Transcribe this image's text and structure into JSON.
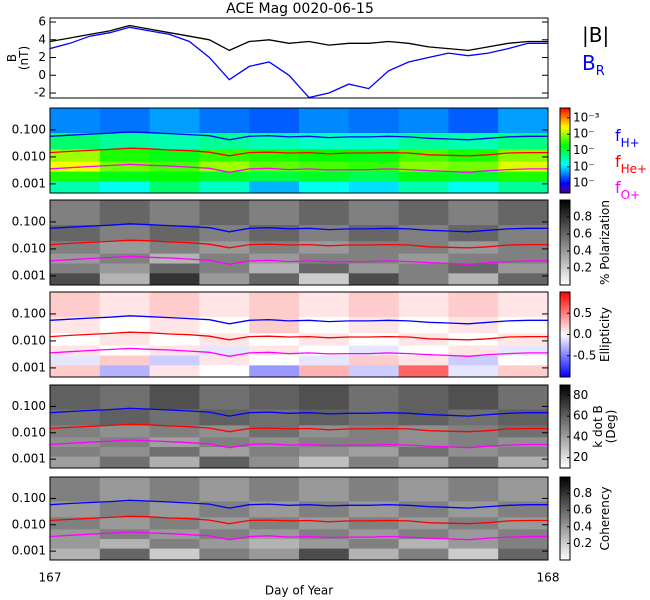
{
  "chart_data": [
    {
      "type": "line",
      "title": "ACE Mag 0020-06-15",
      "xlim": [
        167,
        168
      ],
      "ylim": [
        -2.56,
        6.45
      ],
      "yticks": [
        -2,
        0,
        2,
        4,
        6
      ],
      "ylabel_lines": [
        "B",
        "(nT)"
      ],
      "x": [
        167.0,
        167.04,
        167.08,
        167.12,
        167.16,
        167.2,
        167.24,
        167.28,
        167.32,
        167.36,
        167.4,
        167.44,
        167.48,
        167.52,
        167.56,
        167.6,
        167.64,
        167.68,
        167.72,
        167.76,
        167.8,
        167.84,
        167.88,
        167.92,
        167.96,
        168.0
      ],
      "series": [
        {
          "name": "|B|",
          "color": "#000000",
          "values": [
            3.8,
            4.2,
            4.6,
            5.0,
            5.6,
            5.2,
            4.8,
            4.4,
            4.0,
            2.8,
            3.8,
            4.0,
            3.6,
            3.8,
            3.4,
            3.6,
            3.6,
            3.8,
            3.6,
            3.2,
            3.0,
            2.8,
            3.2,
            3.6,
            3.8,
            3.8
          ]
        },
        {
          "name": "B",
          "subscript": "R",
          "color": "#0000ff",
          "values": [
            3.0,
            3.6,
            4.4,
            4.8,
            5.4,
            5.0,
            4.6,
            3.8,
            2.0,
            -0.5,
            1.0,
            1.5,
            0.0,
            -2.5,
            -2.0,
            -1.0,
            -1.5,
            0.5,
            1.5,
            2.0,
            2.5,
            2.2,
            2.5,
            3.0,
            3.6,
            3.6
          ]
        }
      ]
    },
    {
      "type": "heatmap",
      "xlim": [
        167,
        168
      ],
      "ylim": [
        0.00046,
        0.65
      ],
      "log_y": true,
      "yticks": [
        0.001,
        {
          "value": 0.01,
          "label": "0.010"
        },
        {
          "value": 0.1,
          "label": "0.100"
        }
      ],
      "colormap": "rainbow",
      "zlim": [
        -7.6,
        -2.4
      ],
      "zticks": [
        {
          "value": -3,
          "label": "10⁻³"
        },
        {
          "value": -4,
          "label": "10⁻"
        },
        {
          "value": -5,
          "label": "10⁻"
        },
        {
          "value": -6,
          "label": "10⁻"
        },
        {
          "value": -7,
          "label": "10⁻"
        }
      ],
      "time_bins": [
        167.0,
        167.1,
        167.2,
        167.3,
        167.4,
        167.5,
        167.6,
        167.7,
        167.8,
        167.9,
        168.0
      ],
      "freq_bins": [
        0.00046,
        0.0013,
        0.003,
        0.007,
        0.02,
        0.08,
        0.65
      ],
      "z": [
        [
          -5.5,
          -5.8,
          -5.2,
          -5.6,
          -6.2,
          -5.8,
          -6.0,
          -5.5,
          -5.8,
          -5.4
        ],
        [
          -4.6,
          -4.8,
          -4.7,
          -4.9,
          -5.0,
          -4.9,
          -5.1,
          -4.8,
          -4.9,
          -4.6
        ],
        [
          -3.6,
          -4.2,
          -4.4,
          -4.0,
          -4.3,
          -4.4,
          -4.5,
          -4.1,
          -4.2,
          -3.7
        ],
        [
          -4.0,
          -4.6,
          -4.8,
          -4.5,
          -4.6,
          -4.7,
          -4.8,
          -4.4,
          -4.6,
          -4.1
        ],
        [
          -5.2,
          -5.4,
          -5.5,
          -5.4,
          -5.5,
          -5.6,
          -5.6,
          -5.4,
          -5.5,
          -5.3
        ],
        [
          -6.4,
          -6.5,
          -6.3,
          -6.5,
          -6.6,
          -6.4,
          -6.5,
          -6.4,
          -6.6,
          -6.3
        ]
      ],
      "series": [
        {
          "name": "f",
          "subscript": "H+",
          "color": "#0000ff",
          "values": [
            0.058,
            0.064,
            0.07,
            0.076,
            0.085,
            0.079,
            0.073,
            0.067,
            0.061,
            0.043,
            0.058,
            0.061,
            0.055,
            0.058,
            0.052,
            0.055,
            0.055,
            0.058,
            0.055,
            0.049,
            0.046,
            0.043,
            0.049,
            0.055,
            0.058,
            0.058
          ]
        },
        {
          "name": "f",
          "subscript": "He+",
          "color": "#ff0000",
          "values": [
            0.0145,
            0.016,
            0.0175,
            0.019,
            0.021,
            0.02,
            0.018,
            0.017,
            0.015,
            0.011,
            0.0145,
            0.015,
            0.014,
            0.0145,
            0.013,
            0.014,
            0.014,
            0.0145,
            0.014,
            0.012,
            0.0115,
            0.011,
            0.012,
            0.014,
            0.0145,
            0.0145
          ]
        },
        {
          "name": "f",
          "subscript": "O+",
          "color": "#ff00ff",
          "values": [
            0.0036,
            0.004,
            0.0044,
            0.0048,
            0.0053,
            0.0049,
            0.0046,
            0.0042,
            0.0038,
            0.0027,
            0.0036,
            0.0038,
            0.0034,
            0.0036,
            0.0033,
            0.0034,
            0.0034,
            0.0036,
            0.0034,
            0.0031,
            0.0029,
            0.0027,
            0.0031,
            0.0034,
            0.0036,
            0.0036
          ]
        }
      ]
    },
    {
      "type": "heatmap",
      "xlim": [
        167,
        168
      ],
      "ylim": [
        0.00046,
        0.65
      ],
      "log_y": true,
      "yticks": [
        0.001,
        {
          "value": 0.01,
          "label": "0.010"
        },
        {
          "value": 0.1,
          "label": "0.100"
        }
      ],
      "colormap": "gray",
      "zlim": [
        0,
        1
      ],
      "zticks": [
        0.2,
        0.4,
        0.6,
        0.8
      ],
      "zlabel_lines": [
        "% Polarization"
      ],
      "time_bins": [
        167.0,
        167.1,
        167.2,
        167.3,
        167.4,
        167.5,
        167.6,
        167.7,
        167.8,
        167.9,
        168.0
      ],
      "freq_bins": [
        0.00046,
        0.0013,
        0.003,
        0.007,
        0.02,
        0.08,
        0.65
      ],
      "z": [
        [
          0.7,
          0.3,
          0.8,
          0.4,
          0.6,
          0.2,
          0.7,
          0.5,
          0.3,
          0.6
        ],
        [
          0.5,
          0.4,
          0.6,
          0.5,
          0.3,
          0.6,
          0.4,
          0.5,
          0.6,
          0.4
        ],
        [
          0.4,
          0.5,
          0.3,
          0.5,
          0.4,
          0.5,
          0.5,
          0.4,
          0.5,
          0.5
        ],
        [
          0.5,
          0.4,
          0.5,
          0.4,
          0.5,
          0.4,
          0.5,
          0.5,
          0.4,
          0.5
        ],
        [
          0.6,
          0.5,
          0.6,
          0.5,
          0.6,
          0.5,
          0.6,
          0.5,
          0.6,
          0.5
        ],
        [
          0.5,
          0.6,
          0.5,
          0.6,
          0.5,
          0.6,
          0.5,
          0.6,
          0.5,
          0.6
        ]
      ]
    },
    {
      "type": "heatmap",
      "xlim": [
        167,
        168
      ],
      "ylim": [
        0.00046,
        0.65
      ],
      "log_y": true,
      "yticks": [
        0.001,
        {
          "value": 0.01,
          "label": "0.010"
        },
        {
          "value": 0.1,
          "label": "0.100"
        }
      ],
      "colormap": "bluered",
      "zlim": [
        -1,
        1
      ],
      "zticks": [
        0.5,
        {
          "value": 0,
          "label": "0.0"
        },
        -0.5
      ],
      "zlabel_lines": [
        "Ellipticity"
      ],
      "time_bins": [
        167.0,
        167.1,
        167.2,
        167.3,
        167.4,
        167.5,
        167.6,
        167.7,
        167.8,
        167.9,
        168.0
      ],
      "freq_bins": [
        0.00046,
        0.0013,
        0.003,
        0.007,
        0.02,
        0.08,
        0.65
      ],
      "z": [
        [
          0.2,
          -0.3,
          0.1,
          0.0,
          -0.4,
          0.3,
          -0.2,
          0.6,
          -0.1,
          0.2
        ],
        [
          -0.1,
          0.2,
          -0.2,
          0.1,
          0.0,
          -0.1,
          0.2,
          0.1,
          -0.2,
          0.0
        ],
        [
          0.1,
          0.0,
          0.1,
          -0.1,
          0.1,
          0.0,
          -0.1,
          0.0,
          0.1,
          -0.1
        ],
        [
          0.0,
          0.1,
          0.0,
          0.1,
          0.0,
          0.1,
          0.0,
          0.1,
          0.0,
          0.1
        ],
        [
          0.1,
          0.0,
          0.1,
          0.0,
          0.2,
          0.0,
          0.1,
          0.0,
          0.1,
          0.0
        ],
        [
          0.2,
          0.1,
          0.2,
          0.1,
          0.2,
          0.1,
          0.2,
          0.1,
          0.2,
          0.1
        ]
      ]
    },
    {
      "type": "heatmap",
      "xlim": [
        167,
        168
      ],
      "ylim": [
        0.00046,
        0.65
      ],
      "log_y": true,
      "yticks": [
        0.001,
        {
          "value": 0.01,
          "label": "0.010"
        },
        {
          "value": 0.1,
          "label": "0.100"
        }
      ],
      "colormap": "gray",
      "zlim": [
        10,
        90
      ],
      "zticks": [
        20,
        40,
        60,
        80
      ],
      "zlabel_lines": [
        "k dot B",
        "(Deg)"
      ],
      "time_bins": [
        167.0,
        167.1,
        167.2,
        167.3,
        167.4,
        167.5,
        167.6,
        167.7,
        167.8,
        167.9,
        168.0
      ],
      "freq_bins": [
        0.00046,
        0.0013,
        0.003,
        0.007,
        0.02,
        0.08,
        0.65
      ],
      "z": [
        [
          40,
          55,
          35,
          60,
          45,
          30,
          50,
          40,
          55,
          35
        ],
        [
          50,
          45,
          55,
          40,
          50,
          45,
          40,
          55,
          45,
          50
        ],
        [
          45,
          50,
          40,
          50,
          45,
          50,
          50,
          45,
          50,
          45
        ],
        [
          50,
          45,
          50,
          45,
          55,
          45,
          50,
          45,
          50,
          55
        ],
        [
          55,
          60,
          55,
          60,
          55,
          60,
          55,
          60,
          55,
          60
        ],
        [
          60,
          55,
          65,
          55,
          60,
          65,
          55,
          60,
          65,
          55
        ]
      ]
    },
    {
      "type": "heatmap",
      "xlim": [
        167,
        168
      ],
      "ylim": [
        0.00046,
        0.65
      ],
      "log_y": true,
      "yticks": [
        0.001,
        {
          "value": 0.01,
          "label": "0.010"
        },
        {
          "value": 0.1,
          "label": "0.100"
        }
      ],
      "colormap": "gray",
      "zlim": [
        0,
        1
      ],
      "zticks": [
        0.2,
        0.4,
        0.6,
        0.8
      ],
      "zlabel_lines": [
        "Coherency"
      ],
      "xticks": [
        167,
        168
      ],
      "xlabel": "Day of Year",
      "time_bins": [
        167.0,
        167.1,
        167.2,
        167.3,
        167.4,
        167.5,
        167.6,
        167.7,
        167.8,
        167.9,
        168.0
      ],
      "freq_bins": [
        0.00046,
        0.0013,
        0.003,
        0.007,
        0.02,
        0.08,
        0.65
      ],
      "z": [
        [
          0.3,
          0.6,
          0.2,
          0.5,
          0.4,
          0.7,
          0.3,
          0.5,
          0.2,
          0.6
        ],
        [
          0.4,
          0.3,
          0.5,
          0.4,
          0.3,
          0.4,
          0.5,
          0.3,
          0.4,
          0.5
        ],
        [
          0.4,
          0.5,
          0.4,
          0.5,
          0.4,
          0.5,
          0.4,
          0.5,
          0.4,
          0.5
        ],
        [
          0.5,
          0.4,
          0.5,
          0.4,
          0.5,
          0.4,
          0.5,
          0.4,
          0.5,
          0.4
        ],
        [
          0.4,
          0.5,
          0.4,
          0.5,
          0.4,
          0.5,
          0.4,
          0.5,
          0.4,
          0.5
        ],
        [
          0.5,
          0.4,
          0.5,
          0.4,
          0.5,
          0.4,
          0.5,
          0.4,
          0.5,
          0.4
        ]
      ]
    }
  ]
}
